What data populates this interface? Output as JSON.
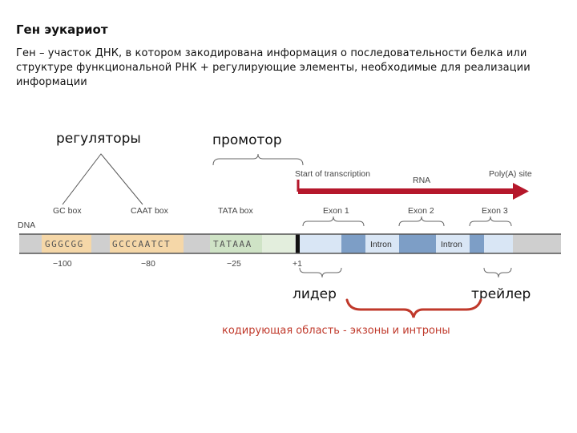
{
  "heading": "Ген эукариот",
  "description": "Ген – участок ДНК, в котором закодирована информация о последовательности белка или структуре функциональной РНК + регулирующие элементы, необходимые для реализации информации",
  "labels": {
    "regulators": "регуляторы",
    "promoter": "промотор",
    "leader": "лидер",
    "trailer": "трейлер",
    "coding_region": "кодирующая область - экзоны и интроны"
  },
  "diagram": {
    "dna": "DNA",
    "gc_box": "GC box",
    "caat_box": "CAAT box",
    "tata_box": "TATA box",
    "start_of_transcription": "Start of transcription",
    "rna": "RNA",
    "polya_site": "Poly(A) site",
    "exon1": "Exon 1",
    "exon2": "Exon 2",
    "exon3": "Exon 3",
    "intron1": "Intron",
    "intron2": "Intron",
    "seq_gc": "GGGCGG",
    "seq_caat": "GCCCAATCT",
    "seq_tata": "TATAAA",
    "pos_m100": "−100",
    "pos_m80": "−80",
    "pos_m25": "−25",
    "pos_p1": "+1"
  },
  "colors": {
    "arrow": "#b5172b",
    "brace_red": "#c0392b",
    "regulator_seg": "#f5d7a8",
    "tata_seg": "#cfe3c6",
    "exon": "#7d9ec6",
    "intron": "#d9e6f5",
    "dna_gray": "#cfcfcf"
  }
}
